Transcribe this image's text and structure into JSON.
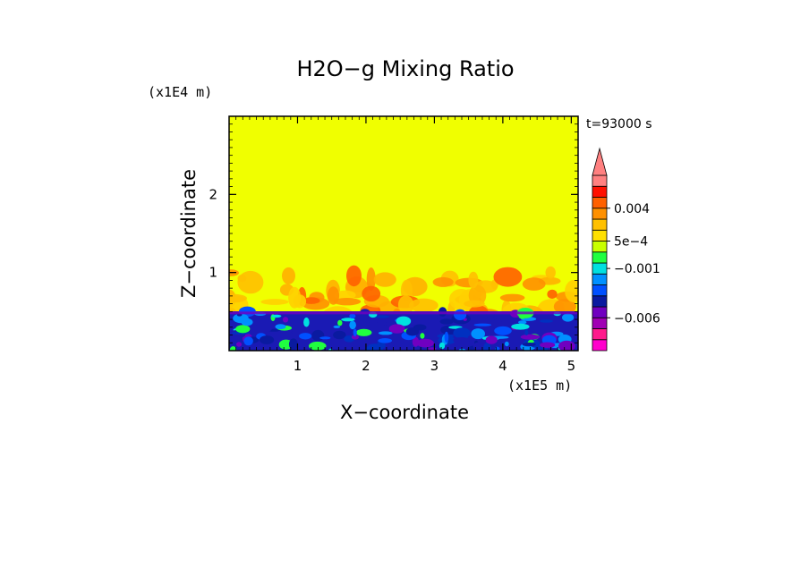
{
  "chart_data": {
    "type": "heatmap",
    "title": "H2O−g Mixing Ratio",
    "time_label": "t=93000 s",
    "xlabel": "X−coordinate",
    "ylabel": "Z−coordinate",
    "x_unit": "(x1E5 m)",
    "y_unit": "(x1E4 m)",
    "xlim": [
      0.0,
      5.1
    ],
    "ylim": [
      0.0,
      3.0
    ],
    "x_ticks": [
      {
        "value": 1,
        "label": "1"
      },
      {
        "value": 2,
        "label": "2"
      },
      {
        "value": 3,
        "label": "3"
      },
      {
        "value": 4,
        "label": "4"
      },
      {
        "value": 5,
        "label": "5"
      }
    ],
    "y_ticks": [
      {
        "value": 1,
        "label": "1"
      },
      {
        "value": 2,
        "label": "2"
      }
    ],
    "field_summary": {
      "upper_region_level": "yellow",
      "boundary_layer_top": 0.5,
      "plume_top": 1.0
    },
    "colorbar": {
      "colors": [
        "#ff00cc",
        "#ff1a8c",
        "#a000b4",
        "#7000c0",
        "#0a1aa0",
        "#0050ff",
        "#0090ff",
        "#00e0e0",
        "#20ff40",
        "#c8ff00",
        "#ffe000",
        "#ffc000",
        "#ff9000",
        "#ff6000",
        "#ff1000",
        "#ff8080"
      ],
      "extend": "max",
      "labels": [
        {
          "text": "0.004",
          "band": 13
        },
        {
          "text": "5e−4",
          "band": 10
        },
        {
          "text": "−0.001",
          "band": 7.5
        },
        {
          "text": "−0.006",
          "band": 3
        }
      ]
    }
  }
}
